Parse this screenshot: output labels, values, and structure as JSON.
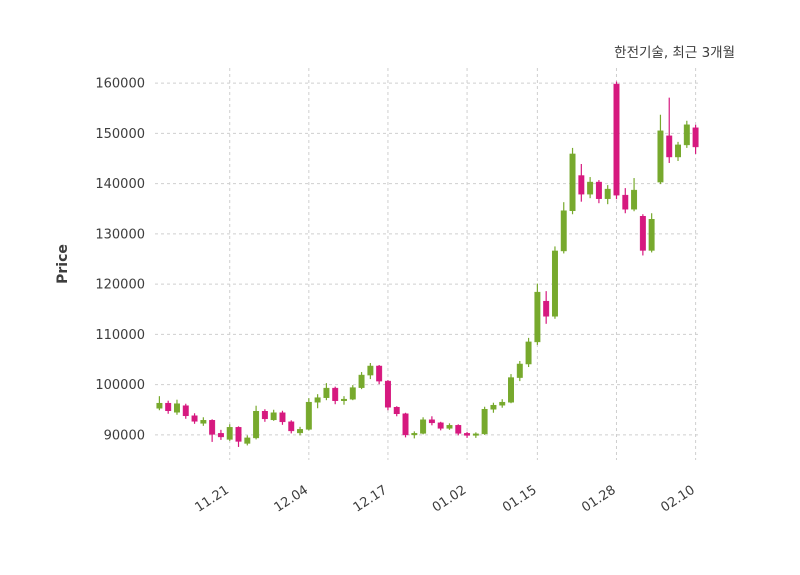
{
  "figure": {
    "title": "한전기술, 최근 3개월",
    "ylabel": "Price"
  },
  "chart_data": {
    "type": "candlestick",
    "title": "한전기술, 최근 3개월",
    "xlabel": "",
    "ylabel": "Price",
    "ylim": [
      85000,
      163000
    ],
    "yticks": [
      90000,
      100000,
      110000,
      120000,
      130000,
      140000,
      150000,
      160000
    ],
    "xtick_labels": [
      "11.21",
      "12.04",
      "12.17",
      "01.02",
      "01.15",
      "01.28",
      "02.10"
    ],
    "xtick_indices": [
      8,
      17,
      26,
      35,
      43,
      52,
      61
    ],
    "grid": true,
    "legend": "none",
    "up_color": "#77a92d",
    "down_color": "#d6197f",
    "grid_color": "#cfcfcf",
    "text_color": "#3d3d3d",
    "background_color": "#ffffff",
    "candles_format": "[open, high, low, close]",
    "candles": [
      [
        95300,
        97700,
        94900,
        96300
      ],
      [
        96300,
        96800,
        94200,
        94800
      ],
      [
        94500,
        97000,
        94000,
        96200
      ],
      [
        95800,
        96200,
        93200,
        93800
      ],
      [
        93800,
        94300,
        92200,
        92700
      ],
      [
        92300,
        93500,
        91800,
        92900
      ],
      [
        92900,
        93100,
        88600,
        90100
      ],
      [
        90300,
        91000,
        89000,
        89600
      ],
      [
        89100,
        92100,
        88800,
        91500
      ],
      [
        91500,
        91700,
        87600,
        88700
      ],
      [
        88300,
        89900,
        87900,
        89400
      ],
      [
        89400,
        95800,
        89100,
        94700
      ],
      [
        94700,
        95100,
        92600,
        93200
      ],
      [
        93000,
        95000,
        92800,
        94400
      ],
      [
        94400,
        94800,
        92000,
        92600
      ],
      [
        92600,
        92900,
        90300,
        90800
      ],
      [
        90400,
        91600,
        89900,
        91100
      ],
      [
        91100,
        97300,
        90900,
        96500
      ],
      [
        96500,
        98100,
        95300,
        97400
      ],
      [
        97400,
        100300,
        96900,
        99300
      ],
      [
        99300,
        99600,
        96100,
        96800
      ],
      [
        96800,
        97700,
        96000,
        97100
      ],
      [
        97100,
        99900,
        96900,
        99400
      ],
      [
        99400,
        102500,
        99100,
        101900
      ],
      [
        101900,
        104300,
        101100,
        103700
      ],
      [
        103700,
        103900,
        100100,
        100700
      ],
      [
        100700,
        100900,
        94900,
        95500
      ],
      [
        95500,
        95700,
        93700,
        94200
      ],
      [
        94200,
        94400,
        89500,
        90000
      ],
      [
        90000,
        90700,
        89300,
        90300
      ],
      [
        90300,
        93500,
        90100,
        93000
      ],
      [
        93000,
        93700,
        91900,
        92400
      ],
      [
        92400,
        92600,
        90900,
        91300
      ],
      [
        91300,
        92300,
        91000,
        91900
      ],
      [
        91900,
        92100,
        89900,
        90300
      ],
      [
        90300,
        90600,
        89400,
        89900
      ],
      [
        89900,
        90500,
        89400,
        90200
      ],
      [
        90200,
        95600,
        90000,
        95100
      ],
      [
        95100,
        96400,
        94400,
        95900
      ],
      [
        95900,
        97100,
        95400,
        96500
      ],
      [
        96500,
        102100,
        96300,
        101400
      ],
      [
        101400,
        104700,
        100700,
        104100
      ],
      [
        104100,
        109300,
        103500,
        108500
      ],
      [
        108500,
        120100,
        107900,
        118400
      ],
      [
        116600,
        118600,
        112100,
        113600
      ],
      [
        113600,
        127500,
        113100,
        126600
      ],
      [
        126600,
        136300,
        126100,
        134600
      ],
      [
        134600,
        147100,
        133900,
        145900
      ],
      [
        141600,
        143900,
        136400,
        137900
      ],
      [
        137900,
        141300,
        137100,
        140300
      ],
      [
        140300,
        140700,
        136100,
        137000
      ],
      [
        137000,
        139700,
        135900,
        138900
      ],
      [
        159800,
        160300,
        136900,
        137700
      ],
      [
        137700,
        139100,
        134100,
        134900
      ],
      [
        134900,
        141100,
        134500,
        138700
      ],
      [
        133500,
        133900,
        125700,
        126700
      ],
      [
        126700,
        134100,
        126300,
        132900
      ],
      [
        140300,
        153700,
        139900,
        150500
      ],
      [
        149500,
        157100,
        144100,
        145300
      ],
      [
        145300,
        148300,
        144500,
        147700
      ],
      [
        147700,
        152500,
        147100,
        151700
      ],
      [
        151100,
        151700,
        145900,
        147300
      ]
    ]
  }
}
